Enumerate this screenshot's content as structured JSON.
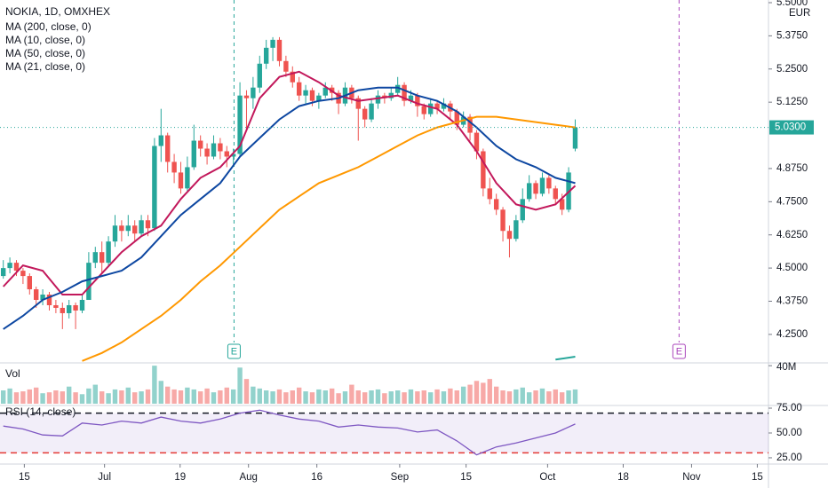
{
  "chart_data": {
    "type": "candlestick",
    "title": "NOKIA, 1D, OMXHEX",
    "currency": "EUR",
    "colors": {
      "up": "#26a69a",
      "down": "#ef5350"
    },
    "candles": [
      [
        4.47,
        4.53,
        4.46,
        4.5
      ],
      [
        4.5,
        4.54,
        4.48,
        4.52
      ],
      [
        4.52,
        4.53,
        4.47,
        4.49
      ],
      [
        4.49,
        4.5,
        4.44,
        4.47
      ],
      [
        4.47,
        4.48,
        4.4,
        4.42
      ],
      [
        4.42,
        4.43,
        4.35,
        4.38
      ],
      [
        4.38,
        4.42,
        4.36,
        4.4
      ],
      [
        4.4,
        4.41,
        4.34,
        4.36
      ],
      [
        4.36,
        4.38,
        4.33,
        4.35
      ],
      [
        4.35,
        4.37,
        4.27,
        4.33
      ],
      [
        4.33,
        4.38,
        4.31,
        4.36
      ],
      [
        4.36,
        4.37,
        4.27,
        4.34
      ],
      [
        4.34,
        4.4,
        4.33,
        4.38
      ],
      [
        4.38,
        4.56,
        4.38,
        4.52
      ],
      [
        4.52,
        4.58,
        4.5,
        4.56
      ],
      [
        4.56,
        4.6,
        4.48,
        4.52
      ],
      [
        4.52,
        4.62,
        4.51,
        4.6
      ],
      [
        4.6,
        4.7,
        4.58,
        4.66
      ],
      [
        4.66,
        4.68,
        4.6,
        4.64
      ],
      [
        4.64,
        4.7,
        4.62,
        4.66
      ],
      [
        4.66,
        4.68,
        4.6,
        4.63
      ],
      [
        4.63,
        4.7,
        4.62,
        4.68
      ],
      [
        4.68,
        4.7,
        4.62,
        4.65
      ],
      [
        4.65,
        4.99,
        4.64,
        4.96
      ],
      [
        4.96,
        5.1,
        4.9,
        5.0
      ],
      [
        5.0,
        5.01,
        4.86,
        4.9
      ],
      [
        4.9,
        4.93,
        4.82,
        4.86
      ],
      [
        4.86,
        4.9,
        4.78,
        4.8
      ],
      [
        4.8,
        4.92,
        4.79,
        4.88
      ],
      [
        4.88,
        5.04,
        4.87,
        4.98
      ],
      [
        4.98,
        5.0,
        4.92,
        4.95
      ],
      [
        4.95,
        4.97,
        4.89,
        4.92
      ],
      [
        4.92,
        5.0,
        4.91,
        4.97
      ],
      [
        4.97,
        4.99,
        4.91,
        4.94
      ],
      [
        4.94,
        4.96,
        4.88,
        4.92
      ],
      [
        4.92,
        4.95,
        4.89,
        4.93
      ],
      [
        4.93,
        5.2,
        4.92,
        5.15
      ],
      [
        5.15,
        5.17,
        5.02,
        5.14
      ],
      [
        5.14,
        5.22,
        5.1,
        5.18
      ],
      [
        5.18,
        5.3,
        5.16,
        5.27
      ],
      [
        5.27,
        5.36,
        5.25,
        5.33
      ],
      [
        5.33,
        5.37,
        5.28,
        5.36
      ],
      [
        5.36,
        5.37,
        5.26,
        5.28
      ],
      [
        5.28,
        5.3,
        5.22,
        5.24
      ],
      [
        5.24,
        5.26,
        5.18,
        5.2
      ],
      [
        5.2,
        5.22,
        5.13,
        5.15
      ],
      [
        5.15,
        5.19,
        5.12,
        5.17
      ],
      [
        5.17,
        5.18,
        5.11,
        5.13
      ],
      [
        5.13,
        5.16,
        5.1,
        5.15
      ],
      [
        5.15,
        5.2,
        5.14,
        5.18
      ],
      [
        5.18,
        5.19,
        5.13,
        5.16
      ],
      [
        5.16,
        5.17,
        5.08,
        5.12
      ],
      [
        5.12,
        5.2,
        5.11,
        5.18
      ],
      [
        5.18,
        5.19,
        5.12,
        5.14
      ],
      [
        5.14,
        5.15,
        4.98,
        5.1
      ],
      [
        5.1,
        5.11,
        5.03,
        5.06
      ],
      [
        5.06,
        5.14,
        5.05,
        5.12
      ],
      [
        5.12,
        5.17,
        5.1,
        5.15
      ],
      [
        5.15,
        5.16,
        5.12,
        5.14
      ],
      [
        5.14,
        5.18,
        5.13,
        5.16
      ],
      [
        5.16,
        5.22,
        5.15,
        5.19
      ],
      [
        5.19,
        5.2,
        5.11,
        5.13
      ],
      [
        5.13,
        5.17,
        5.12,
        5.15
      ],
      [
        5.15,
        5.16,
        5.07,
        5.11
      ],
      [
        5.11,
        5.12,
        5.06,
        5.08
      ],
      [
        5.08,
        5.14,
        5.07,
        5.12
      ],
      [
        5.12,
        5.13,
        5.08,
        5.1
      ],
      [
        5.1,
        5.14,
        5.09,
        5.12
      ],
      [
        5.12,
        5.13,
        5.06,
        5.09
      ],
      [
        5.09,
        5.1,
        5.02,
        5.04
      ],
      [
        5.04,
        5.09,
        5.03,
        5.07
      ],
      [
        5.07,
        5.08,
        4.98,
        5.01
      ],
      [
        5.01,
        5.02,
        4.91,
        4.94
      ],
      [
        4.94,
        4.95,
        4.77,
        4.8
      ],
      [
        4.8,
        4.84,
        4.74,
        4.76
      ],
      [
        4.76,
        4.78,
        4.7,
        4.72
      ],
      [
        4.72,
        4.73,
        4.6,
        4.64
      ],
      [
        4.64,
        4.66,
        4.54,
        4.61
      ],
      [
        4.61,
        4.7,
        4.6,
        4.68
      ],
      [
        4.68,
        4.8,
        4.67,
        4.76
      ],
      [
        4.76,
        4.85,
        4.75,
        4.82
      ],
      [
        4.82,
        4.83,
        4.76,
        4.78
      ],
      [
        4.78,
        4.86,
        4.77,
        4.84
      ],
      [
        4.84,
        4.85,
        4.78,
        4.8
      ],
      [
        4.8,
        4.81,
        4.74,
        4.76
      ],
      [
        4.76,
        4.78,
        4.7,
        4.72
      ],
      [
        4.72,
        4.88,
        4.71,
        4.86
      ],
      [
        4.95,
        5.06,
        4.94,
        5.03
      ]
    ],
    "xlim": [
      -0.5,
      116.4
    ],
    "xticks": [
      {
        "value": 3.2,
        "label": "15"
      },
      {
        "value": 15.4,
        "label": "Jul"
      },
      {
        "value": 26.9,
        "label": "19"
      },
      {
        "value": 37.3,
        "label": "Aug"
      },
      {
        "value": 47.7,
        "label": "16"
      },
      {
        "value": 60.3,
        "label": "Sep"
      },
      {
        "value": 70.4,
        "label": "15"
      },
      {
        "value": 82.8,
        "label": "Oct"
      },
      {
        "value": 94.3,
        "label": "18"
      },
      {
        "value": 104.7,
        "label": "Nov"
      },
      {
        "value": 114.7,
        "label": "15"
      }
    ],
    "ylim": [
      4.146,
      5.51
    ],
    "yticks": [
      {
        "value": 5.5,
        "label": "5.5000"
      },
      {
        "value": 5.375,
        "label": "5.3750"
      },
      {
        "value": 5.25,
        "label": "5.2500"
      },
      {
        "value": 5.125,
        "label": "5.1250"
      },
      {
        "value": 4.875,
        "label": "4.8750"
      },
      {
        "value": 4.75,
        "label": "4.7500"
      },
      {
        "value": 4.625,
        "label": "4.6250"
      },
      {
        "value": 4.5,
        "label": "4.5000"
      },
      {
        "value": 4.375,
        "label": "4.3750"
      },
      {
        "value": 4.25,
        "label": "4.2500"
      }
    ],
    "last_price": {
      "value": 5.03,
      "label": "5.0300"
    },
    "ma_x": [
      0,
      3,
      6,
      9,
      12,
      15,
      18,
      21,
      24,
      27,
      30,
      33,
      36,
      39,
      42,
      45,
      48,
      51,
      54,
      57,
      60,
      63,
      66,
      69,
      72,
      75,
      78,
      81,
      84,
      87
    ],
    "series": [
      {
        "name": "MA (200, close, 0)",
        "color": "#26a69a",
        "values": [
          null,
          null,
          null,
          null,
          null,
          null,
          null,
          null,
          null,
          null,
          null,
          null,
          null,
          null,
          null,
          null,
          null,
          null,
          null,
          null,
          null,
          null,
          null,
          null,
          null,
          null,
          null,
          null,
          4.155,
          4.166
        ]
      },
      {
        "name": "MA (10, close, 0)",
        "color": "#c2185b",
        "values": [
          4.43,
          4.51,
          4.49,
          4.4,
          4.4,
          4.48,
          4.56,
          4.62,
          4.66,
          4.76,
          4.84,
          4.88,
          4.96,
          5.14,
          5.22,
          5.24,
          5.2,
          5.15,
          5.13,
          5.14,
          5.15,
          5.12,
          5.1,
          5.04,
          4.94,
          4.82,
          4.74,
          4.72,
          4.74,
          4.81
        ]
      },
      {
        "name": "MA (50, close, 0)",
        "color": "#ff9800",
        "values": [
          null,
          null,
          null,
          null,
          4.15,
          4.18,
          4.22,
          4.27,
          4.32,
          4.38,
          4.45,
          4.51,
          4.58,
          4.65,
          4.72,
          4.77,
          4.82,
          4.85,
          4.88,
          4.92,
          4.96,
          5.0,
          5.03,
          5.05,
          5.07,
          5.07,
          5.06,
          5.05,
          5.04,
          5.03
        ]
      },
      {
        "name": "MA (21, close, 0)",
        "color": "#0d47a1",
        "values": [
          4.27,
          4.32,
          4.38,
          4.41,
          4.45,
          4.47,
          4.49,
          4.54,
          4.62,
          4.7,
          4.76,
          4.82,
          4.92,
          4.99,
          5.06,
          5.11,
          5.13,
          5.14,
          5.17,
          5.18,
          5.18,
          5.15,
          5.13,
          5.09,
          5.03,
          4.96,
          4.91,
          4.88,
          4.84,
          4.82
        ]
      }
    ],
    "events": [
      {
        "label": "E",
        "x": 35.1,
        "color": "#26a69a"
      },
      {
        "label": "E",
        "x": 102.8,
        "color": "#ab47bc"
      }
    ],
    "volume": {
      "title": "Vol",
      "ylim": [
        0,
        42
      ],
      "yticks": [
        {
          "value": 40,
          "label": "40M"
        }
      ],
      "values": [
        14,
        16,
        12,
        13,
        15,
        17,
        11,
        12,
        14,
        13,
        18,
        12,
        10,
        16,
        20,
        13,
        11,
        15,
        14,
        17,
        12,
        13,
        15,
        40,
        24,
        18,
        15,
        14,
        17,
        15,
        13,
        16,
        12,
        14,
        17,
        15,
        38,
        26,
        18,
        16,
        14,
        13,
        15,
        12,
        14,
        17,
        13,
        12,
        15,
        14,
        16,
        11,
        13,
        20,
        14,
        12,
        14,
        15,
        11,
        13,
        14,
        12,
        15,
        13,
        14,
        12,
        15,
        13,
        16,
        14,
        18,
        20,
        24,
        22,
        26,
        18,
        14,
        13,
        15,
        17,
        12,
        14,
        16,
        13,
        15,
        12,
        14,
        15
      ]
    },
    "rsi": {
      "title": "RSI (14, close)",
      "color": "#7e57c2",
      "ylim": [
        19.6,
        76.8
      ],
      "bands": [
        70,
        30
      ],
      "yticks": [
        {
          "value": 75,
          "label": "75.00"
        },
        {
          "value": 50,
          "label": "50.00"
        },
        {
          "value": 25,
          "label": "25.00"
        }
      ],
      "values": [
        57,
        54,
        48,
        47,
        60,
        58,
        62,
        60,
        66,
        62,
        60,
        64,
        70,
        73,
        68,
        64,
        62,
        56,
        58,
        56,
        55,
        51,
        53,
        42,
        28,
        36,
        40,
        45,
        50,
        59
      ]
    }
  }
}
